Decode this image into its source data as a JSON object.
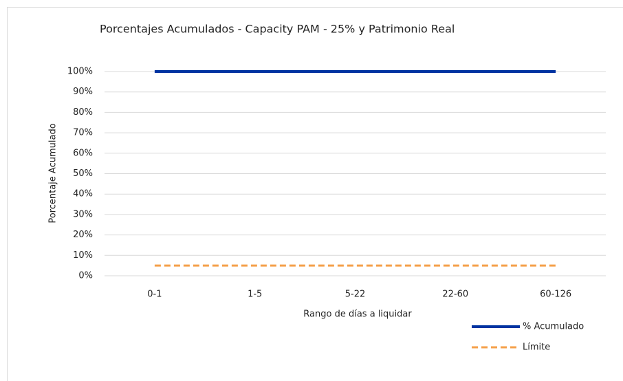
{
  "chart_data": {
    "type": "line",
    "title": "Porcentajes Acumulados - Capacity PAM - 25% y Patrimonio Real",
    "x_label": "Rango de días a liquidar",
    "y_label": "Porcentaje Acumulado",
    "categories": [
      "0-1",
      "1-5",
      "5-22",
      "22-60",
      "60-126"
    ],
    "series": [
      {
        "name": "% Acumulado",
        "color": "#0033a1",
        "dash": false,
        "values": [
          100,
          100,
          100,
          100,
          100
        ]
      },
      {
        "name": "Límite",
        "color": "#f5a04a",
        "dash": true,
        "values": [
          5,
          5,
          5,
          5,
          5
        ]
      }
    ],
    "ylim": [
      0,
      100
    ],
    "yticks": [
      {
        "value": 0,
        "label": "0%"
      },
      {
        "value": 10,
        "label": "10%"
      },
      {
        "value": 20,
        "label": "20%"
      },
      {
        "value": 30,
        "label": "30%"
      },
      {
        "value": 40,
        "label": "40%"
      },
      {
        "value": 50,
        "label": "50%"
      },
      {
        "value": 60,
        "label": "60%"
      },
      {
        "value": 70,
        "label": "70%"
      },
      {
        "value": 80,
        "label": "80%"
      },
      {
        "value": 90,
        "label": "90%"
      },
      {
        "value": 100,
        "label": "100%"
      }
    ],
    "grid": true,
    "legend": "bottom-right"
  }
}
